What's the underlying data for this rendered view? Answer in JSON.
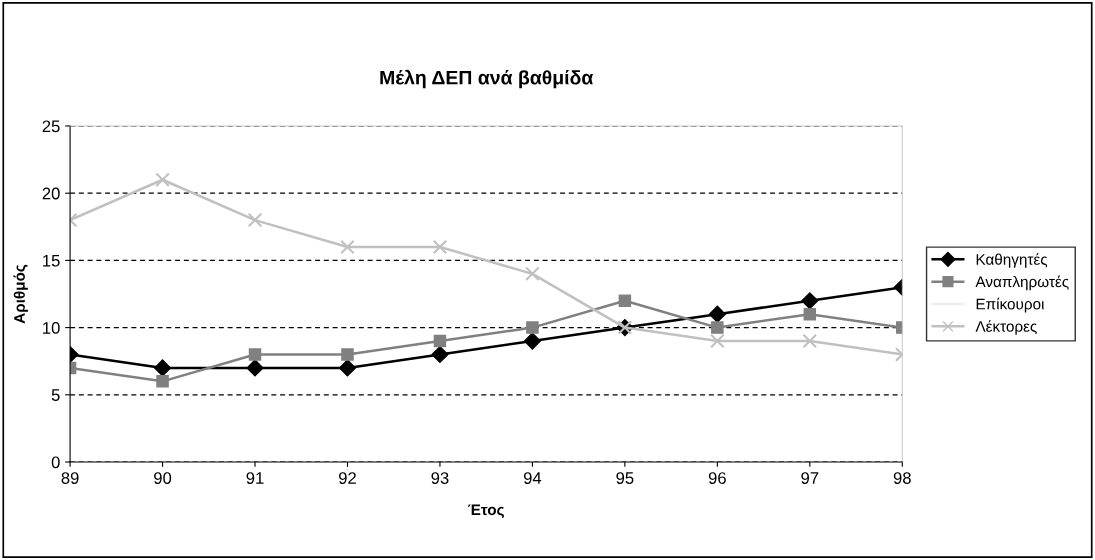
{
  "chart_data": {
    "type": "line",
    "title": "Μέλη ΔΕΠ ανά βαθμίδα",
    "xlabel": "Έτος",
    "ylabel": "Αριθμός",
    "categories": [
      "89",
      "90",
      "91",
      "92",
      "93",
      "94",
      "95",
      "96",
      "97",
      "98"
    ],
    "series": [
      {
        "name": "Καθηγητές",
        "color": "#000000",
        "marker": "diamond",
        "values": [
          8,
          7,
          7,
          7,
          8,
          9,
          10,
          11,
          12,
          13
        ]
      },
      {
        "name": "Αναπληρωτές",
        "color": "#808080",
        "marker": "square",
        "values": [
          7,
          6,
          8,
          8,
          9,
          10,
          12,
          10,
          11,
          10
        ]
      },
      {
        "name": "Επίκουροι",
        "color": "#eeeeee",
        "marker": "none",
        "values": [
          null,
          null,
          null,
          null,
          null,
          null,
          null,
          null,
          null,
          null
        ]
      },
      {
        "name": "Λέκτορες",
        "color": "#c0c0c0",
        "marker": "cross",
        "values": [
          18,
          21,
          18,
          16,
          16,
          14,
          10,
          9,
          9,
          8
        ]
      }
    ],
    "ylim": [
      0,
      25
    ],
    "yticks": [
      0,
      5,
      10,
      15,
      20,
      25
    ],
    "grid": "y",
    "legend": "right",
    "line_style": "solid"
  }
}
